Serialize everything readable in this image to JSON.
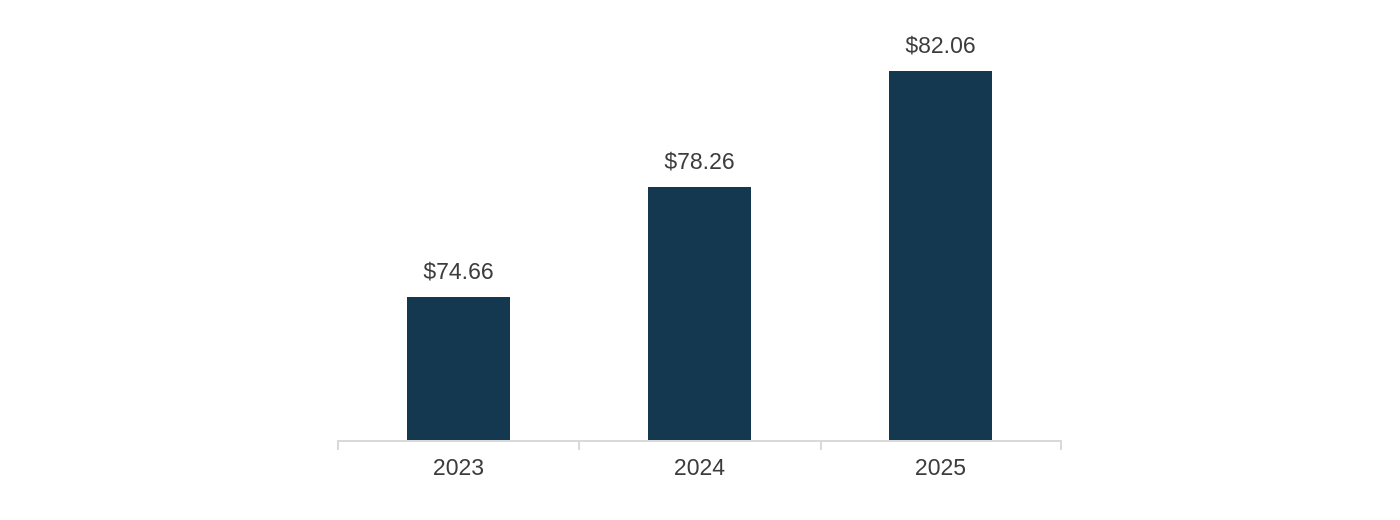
{
  "chart_data": {
    "type": "bar",
    "categories": [
      "2023",
      "2024",
      "2025"
    ],
    "values": [
      74.66,
      78.26,
      82.06
    ],
    "value_labels": [
      "$74.66",
      "$78.26",
      "$82.06"
    ],
    "series_count": 1,
    "ylim": [
      70,
      85
    ],
    "grid": false,
    "legend": "none",
    "axes_visible": {
      "x": true,
      "y": false
    },
    "colors": {
      "bar": "#143850",
      "axis_line": "#d9d9d9",
      "label_text": "#3c3c3c",
      "background": "#ffffff"
    }
  }
}
